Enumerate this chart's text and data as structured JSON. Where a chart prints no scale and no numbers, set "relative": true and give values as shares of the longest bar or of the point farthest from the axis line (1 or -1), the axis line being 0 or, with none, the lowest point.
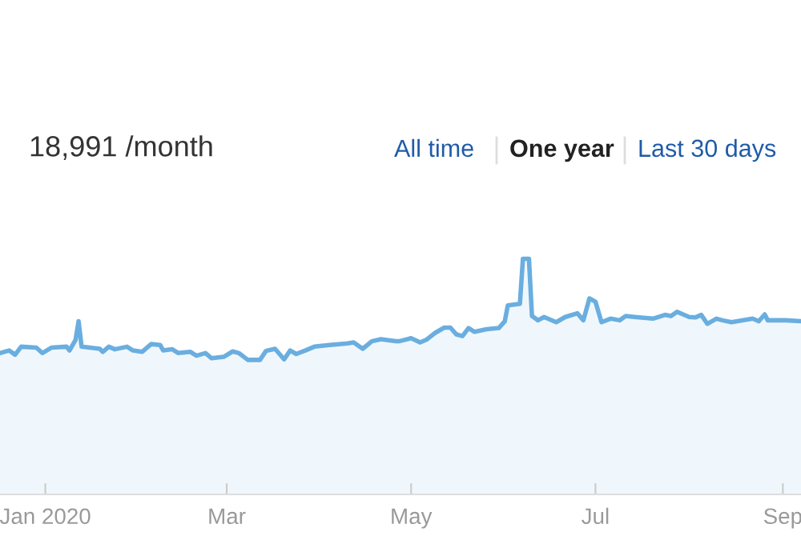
{
  "chart_data": {
    "type": "area",
    "title": "18,991 /month",
    "annotations": [
      "All time",
      "One year",
      "Last 30 days"
    ],
    "relative": true,
    "xlim": [
      "2019-12-17",
      "2020-09-07"
    ],
    "xticks": [
      {
        "value": "2020-01-01",
        "label": "Jan 2020"
      },
      {
        "value": "2020-03-01",
        "label": "Mar"
      },
      {
        "value": "2020-05-01",
        "label": "May"
      },
      {
        "value": "2020-07-01",
        "label": "Jul"
      },
      {
        "value": "2020-09-01",
        "label": "Sep"
      }
    ],
    "series": [
      {
        "color": "#6aaee0",
        "x": [
          "2019-12-17",
          "2019-12-20",
          "2019-12-22",
          "2019-12-24",
          "2019-12-29",
          "2019-12-31",
          "2020-01-03",
          "2020-01-08",
          "2020-01-09",
          "2020-01-11",
          "2020-01-12",
          "2020-01-13",
          "2020-01-19",
          "2020-01-20",
          "2020-01-22",
          "2020-01-24",
          "2020-01-28",
          "2020-01-30",
          "2020-02-02",
          "2020-02-05",
          "2020-02-08",
          "2020-02-09",
          "2020-02-12",
          "2020-02-14",
          "2020-02-18",
          "2020-02-20",
          "2020-02-23",
          "2020-02-25",
          "2020-02-29",
          "2020-03-03",
          "2020-03-05",
          "2020-03-08",
          "2020-03-12",
          "2020-03-14",
          "2020-03-17",
          "2020-03-20",
          "2020-03-22",
          "2020-03-24",
          "2020-03-27",
          "2020-03-30",
          "2020-04-04",
          "2020-04-10",
          "2020-04-12",
          "2020-04-15",
          "2020-04-18",
          "2020-04-21",
          "2020-04-26",
          "2020-04-27",
          "2020-05-01",
          "2020-05-04",
          "2020-05-06",
          "2020-05-09",
          "2020-05-12",
          "2020-05-14",
          "2020-05-16",
          "2020-05-18",
          "2020-05-20",
          "2020-05-22",
          "2020-05-26",
          "2020-05-30",
          "2020-06-01",
          "2020-06-02",
          "2020-06-06",
          "2020-06-07",
          "2020-06-09",
          "2020-06-10",
          "2020-06-12",
          "2020-06-14",
          "2020-06-18",
          "2020-06-21",
          "2020-06-25",
          "2020-06-27",
          "2020-06-29",
          "2020-07-01",
          "2020-07-03",
          "2020-07-06",
          "2020-07-09",
          "2020-07-11",
          "2020-07-14",
          "2020-07-20",
          "2020-07-24",
          "2020-07-26",
          "2020-07-28",
          "2020-08-01",
          "2020-08-03",
          "2020-08-05",
          "2020-08-07",
          "2020-08-10",
          "2020-08-12",
          "2020-08-15",
          "2020-08-22",
          "2020-08-24",
          "2020-08-26",
          "2020-08-27",
          "2020-09-02",
          "2020-09-07"
        ],
        "values": [
          0.6,
          0.611,
          0.593,
          0.627,
          0.623,
          0.6,
          0.623,
          0.627,
          0.611,
          0.656,
          0.735,
          0.627,
          0.618,
          0.605,
          0.627,
          0.616,
          0.627,
          0.611,
          0.605,
          0.638,
          0.634,
          0.611,
          0.616,
          0.6,
          0.605,
          0.589,
          0.6,
          0.578,
          0.584,
          0.607,
          0.6,
          0.571,
          0.571,
          0.609,
          0.618,
          0.573,
          0.611,
          0.596,
          0.611,
          0.627,
          0.634,
          0.641,
          0.645,
          0.618,
          0.65,
          0.659,
          0.65,
          0.65,
          0.663,
          0.645,
          0.656,
          0.686,
          0.708,
          0.708,
          0.679,
          0.672,
          0.706,
          0.69,
          0.701,
          0.706,
          0.735,
          0.802,
          0.809,
          1.0,
          1.0,
          0.757,
          0.739,
          0.753,
          0.731,
          0.753,
          0.769,
          0.739,
          0.832,
          0.818,
          0.731,
          0.746,
          0.739,
          0.757,
          0.753,
          0.746,
          0.762,
          0.757,
          0.775,
          0.753,
          0.751,
          0.762,
          0.724,
          0.746,
          0.739,
          0.731,
          0.746,
          0.735,
          0.764,
          0.739,
          0.739,
          0.735
        ]
      }
    ]
  }
}
